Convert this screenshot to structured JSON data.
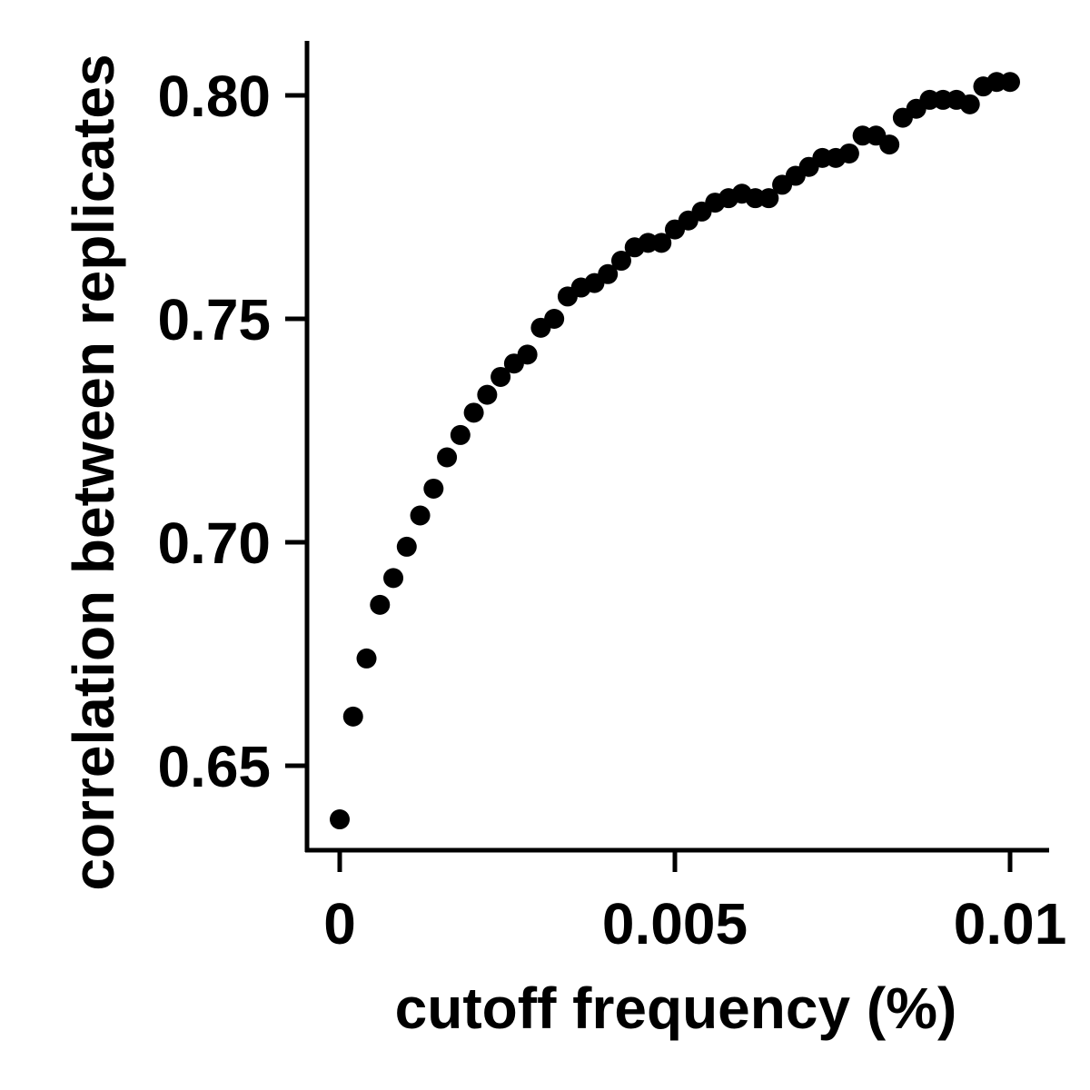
{
  "chart_data": {
    "type": "scatter",
    "title": "",
    "xlabel": "cutoff frequency (%)",
    "ylabel": "correlation between replicates",
    "xlim": [
      -0.0005,
      0.0105
    ],
    "ylim": [
      0.63,
      0.812
    ],
    "x_ticks": [
      {
        "value": 0,
        "label": "0"
      },
      {
        "value": 0.005,
        "label": "0.005"
      },
      {
        "value": 0.01,
        "label": "0.01"
      }
    ],
    "y_ticks": [
      {
        "value": 0.65,
        "label": "0.65"
      },
      {
        "value": 0.7,
        "label": "0.70"
      },
      {
        "value": 0.75,
        "label": "0.75"
      },
      {
        "value": 0.8,
        "label": "0.80"
      }
    ],
    "grid": false,
    "marker_color": "#000000",
    "series": [
      {
        "x": [
          0,
          0.0002,
          0.0004,
          0.0006,
          0.0008,
          0.001,
          0.0012,
          0.0014,
          0.0016,
          0.0018,
          0.002,
          0.0022,
          0.0024,
          0.0026,
          0.0028,
          0.003,
          0.0032,
          0.0034,
          0.0036,
          0.0038,
          0.004,
          0.0042,
          0.0044,
          0.0046,
          0.0048,
          0.005,
          0.0052,
          0.0054,
          0.0056,
          0.0058,
          0.006,
          0.0062,
          0.0064,
          0.0066,
          0.0068,
          0.007,
          0.0072,
          0.0074,
          0.0076,
          0.0078,
          0.008,
          0.0082,
          0.0084,
          0.0086,
          0.0088,
          0.009,
          0.0092,
          0.0094,
          0.0096,
          0.0098,
          0.01
        ],
        "y": [
          0.638,
          0.661,
          0.674,
          0.686,
          0.692,
          0.699,
          0.706,
          0.712,
          0.719,
          0.724,
          0.729,
          0.733,
          0.737,
          0.74,
          0.742,
          0.748,
          0.75,
          0.755,
          0.757,
          0.758,
          0.76,
          0.763,
          0.766,
          0.767,
          0.767,
          0.77,
          0.772,
          0.774,
          0.776,
          0.777,
          0.778,
          0.777,
          0.777,
          0.78,
          0.782,
          0.784,
          0.786,
          0.786,
          0.787,
          0.791,
          0.791,
          0.789,
          0.795,
          0.797,
          0.799,
          0.799,
          0.799,
          0.798,
          0.802,
          0.803,
          0.803
        ]
      }
    ]
  }
}
